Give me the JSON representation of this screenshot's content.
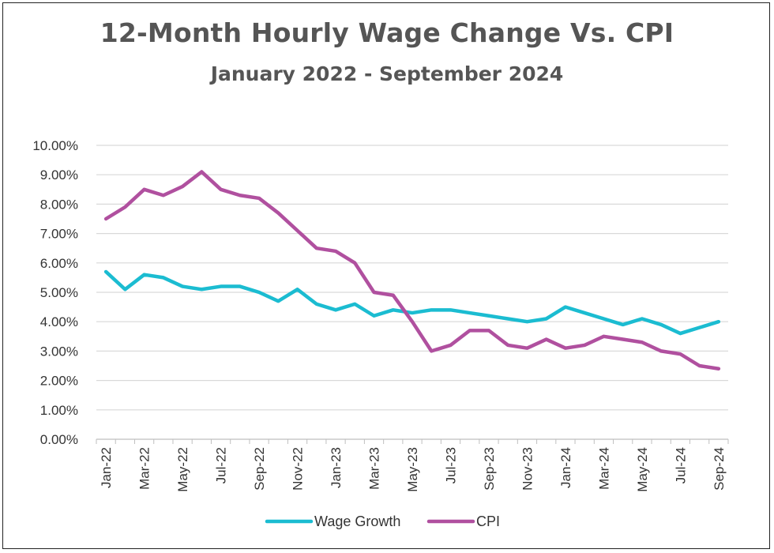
{
  "header": {
    "title": "12-Month Hourly Wage Change Vs. CPI",
    "subtitle": "January 2022 - September 2024"
  },
  "chart_data": {
    "type": "line",
    "title": "12-Month Hourly Wage Change Vs. CPI",
    "subtitle": "January 2022 - September 2024",
    "xlabel": "",
    "ylabel": "",
    "x": [
      "Jan-22",
      "Feb-22",
      "Mar-22",
      "Apr-22",
      "May-22",
      "Jun-22",
      "Jul-22",
      "Aug-22",
      "Sep-22",
      "Oct-22",
      "Nov-22",
      "Dec-22",
      "Jan-23",
      "Feb-23",
      "Mar-23",
      "Apr-23",
      "May-23",
      "Jun-23",
      "Jul-23",
      "Aug-23",
      "Sep-23",
      "Oct-23",
      "Nov-23",
      "Dec-23",
      "Jan-24",
      "Feb-24",
      "Mar-24",
      "Apr-24",
      "May-24",
      "Jun-24",
      "Jul-24",
      "Aug-24",
      "Sep-24"
    ],
    "x_tick_labels": [
      "Jan-22",
      "Mar-22",
      "May-22",
      "Jul-22",
      "Sep-22",
      "Nov-22",
      "Jan-23",
      "Mar-23",
      "May-23",
      "Jul-23",
      "Sep-23",
      "Nov-23",
      "Jan-24",
      "Mar-24",
      "May-24",
      "Jul-24",
      "Sep-24"
    ],
    "y_tick_labels": [
      "0.00%",
      "1.00%",
      "2.00%",
      "3.00%",
      "4.00%",
      "5.00%",
      "6.00%",
      "7.00%",
      "8.00%",
      "9.00%",
      "10.00%"
    ],
    "ylim": [
      0,
      10
    ],
    "grid": "horizontal",
    "legend": "bottom",
    "series": [
      {
        "name": "Wage Growth",
        "color": "#1BBCD1",
        "values": [
          5.7,
          5.1,
          5.6,
          5.5,
          5.2,
          5.1,
          5.2,
          5.2,
          5.0,
          4.7,
          5.1,
          4.6,
          4.4,
          4.6,
          4.2,
          4.4,
          4.3,
          4.4,
          4.4,
          4.3,
          4.2,
          4.1,
          4.0,
          4.1,
          4.5,
          4.3,
          4.1,
          3.9,
          4.1,
          3.9,
          3.6,
          3.8,
          4.0
        ]
      },
      {
        "name": "CPI",
        "color": "#B0509F",
        "values": [
          7.5,
          7.9,
          8.5,
          8.3,
          8.6,
          9.1,
          8.5,
          8.3,
          8.2,
          7.7,
          7.1,
          6.5,
          6.4,
          6.0,
          5.0,
          4.9,
          4.0,
          3.0,
          3.2,
          3.7,
          3.7,
          3.2,
          3.1,
          3.4,
          3.1,
          3.2,
          3.5,
          3.4,
          3.3,
          3.0,
          2.9,
          2.5,
          2.4
        ]
      }
    ]
  }
}
